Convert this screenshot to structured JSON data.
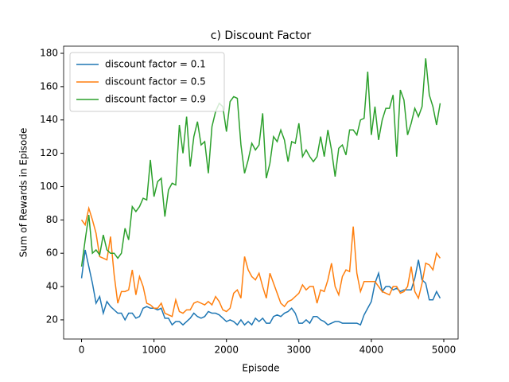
{
  "chart_data": {
    "type": "line",
    "title": "c) Discount Factor",
    "x_label": "Episode",
    "y_label": "Sum of Rewards in Episode",
    "x": [
      0,
      50,
      100,
      150,
      200,
      250,
      300,
      350,
      400,
      450,
      500,
      550,
      600,
      650,
      700,
      750,
      800,
      850,
      900,
      950,
      1000,
      1050,
      1100,
      1150,
      1200,
      1250,
      1300,
      1350,
      1400,
      1450,
      1500,
      1550,
      1600,
      1650,
      1700,
      1750,
      1800,
      1850,
      1900,
      1950,
      2000,
      2050,
      2100,
      2150,
      2200,
      2250,
      2300,
      2350,
      2400,
      2450,
      2500,
      2550,
      2600,
      2650,
      2700,
      2750,
      2800,
      2850,
      2900,
      2950,
      3000,
      3050,
      3100,
      3150,
      3200,
      3250,
      3300,
      3350,
      3400,
      3450,
      3500,
      3550,
      3600,
      3650,
      3700,
      3750,
      3800,
      3850,
      3900,
      3950,
      4000,
      4050,
      4100,
      4150,
      4200,
      4250,
      4300,
      4350,
      4400,
      4450,
      4500,
      4550,
      4600,
      4650,
      4700,
      4750,
      4800,
      4850,
      4900,
      4950
    ],
    "series": [
      {
        "name": "discount factor = 0.1",
        "color": "#1f77b4",
        "values": [
          45,
          62,
          52,
          42,
          30,
          34,
          24,
          31,
          28,
          26,
          24,
          24,
          20,
          24,
          24,
          21,
          22,
          27,
          28,
          27,
          27,
          26,
          27,
          21,
          21,
          17,
          19,
          19,
          17,
          19,
          21,
          24,
          22,
          21,
          22,
          25,
          24,
          24,
          23,
          21,
          19,
          20,
          19,
          17,
          20,
          17,
          19,
          17,
          21,
          19,
          21,
          18,
          18,
          22,
          23,
          22,
          24,
          25,
          27,
          24,
          18,
          18,
          20,
          18,
          22,
          22,
          20,
          19,
          17,
          18,
          19,
          19,
          18,
          18,
          18,
          18,
          18,
          17,
          23,
          27,
          31,
          42,
          48,
          37,
          40,
          40,
          38,
          39,
          37,
          38,
          38,
          38,
          45,
          56,
          44,
          42,
          32,
          32,
          37,
          33
        ]
      },
      {
        "name": "discount factor = 0.5",
        "color": "#ff7f0e",
        "values": [
          80,
          77,
          87,
          80,
          72,
          58,
          57,
          56,
          70,
          47,
          30,
          37,
          37,
          38,
          50,
          35,
          46,
          40,
          30,
          29,
          27,
          27,
          30,
          24,
          23,
          22,
          32,
          25,
          24,
          26,
          26,
          30,
          31,
          30,
          29,
          31,
          29,
          34,
          31,
          26,
          25,
          27,
          36,
          38,
          33,
          58,
          50,
          46,
          44,
          48,
          40,
          33,
          48,
          42,
          36,
          30,
          28,
          31,
          32,
          34,
          36,
          41,
          38,
          40,
          40,
          30,
          38,
          37,
          44,
          54,
          40,
          35,
          46,
          50,
          49,
          76,
          48,
          37,
          43,
          43,
          43,
          43,
          40,
          37,
          36,
          35,
          40,
          40,
          36,
          37,
          40,
          52,
          37,
          33,
          42,
          54,
          53,
          50,
          60,
          57
        ]
      },
      {
        "name": "discount factor = 0.9",
        "color": "#2ca02c",
        "values": [
          52,
          68,
          83,
          60,
          62,
          59,
          71,
          62,
          60,
          60,
          57,
          60,
          75,
          68,
          88,
          85,
          88,
          93,
          92,
          116,
          94,
          103,
          105,
          82,
          98,
          102,
          101,
          137,
          120,
          142,
          112,
          130,
          139,
          125,
          127,
          108,
          136,
          145,
          150,
          148,
          133,
          151,
          154,
          153,
          125,
          108,
          116,
          126,
          122,
          125,
          144,
          105,
          114,
          130,
          127,
          134,
          128,
          115,
          127,
          126,
          138,
          118,
          122,
          118,
          115,
          118,
          130,
          118,
          134,
          122,
          106,
          123,
          125,
          119,
          134,
          134,
          131,
          140,
          141,
          169,
          131,
          148,
          128,
          140,
          147,
          147,
          155,
          118,
          158,
          152,
          131,
          138,
          147,
          142,
          148,
          177,
          155,
          148,
          137,
          150
        ]
      }
    ],
    "xlim": [
      -247.5,
      5197.5
    ],
    "ylim": [
      8.5,
      184.3
    ],
    "xticks": [
      0,
      1000,
      2000,
      3000,
      4000,
      5000
    ],
    "yticks": [
      20,
      40,
      60,
      80,
      100,
      120,
      140,
      160,
      180
    ],
    "legend": "upper left"
  }
}
